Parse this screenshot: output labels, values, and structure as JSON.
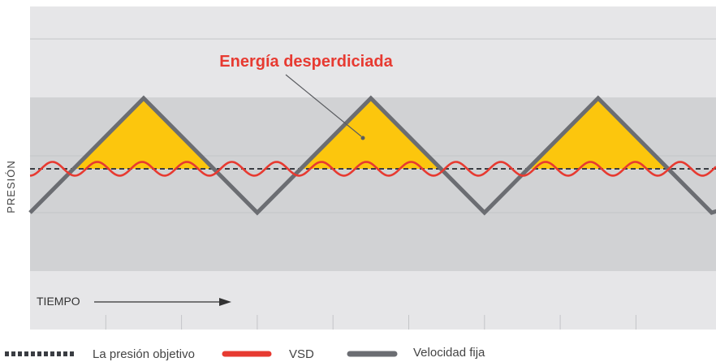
{
  "chart_data": {
    "type": "line",
    "ylabel": "PRESIÓN",
    "xlabel": "TIEMPO",
    "annotation": "Energía desperdiciada",
    "grid": true,
    "legend_position": "bottom",
    "series": [
      {
        "name": "Velocidad fija",
        "x": [
          0,
          1.5,
          3.0,
          4.5,
          6.0,
          7.5,
          9.0,
          9.5
        ],
        "y": [
          -1,
          2,
          -1,
          2,
          -1,
          2,
          -1,
          -0.7
        ]
      },
      {
        "name": "VSD",
        "amplitude": 0.18,
        "cycles": 15.3
      },
      {
        "name": "La presión objetivo",
        "y": 0.15
      }
    ],
    "legend": [
      {
        "name": "La presión objetivo",
        "style": "dashed",
        "color": "#3a3d42"
      },
      {
        "name": "VSD",
        "style": "solid",
        "color": "#e73a31"
      },
      {
        "name": "Velocidad fija",
        "style": "solid",
        "color": "#6b6d72"
      }
    ],
    "colors": {
      "fixed_speed": "#6b6d72",
      "vsd": "#e73a31",
      "target": "#3a3d42",
      "wasted_energy": "#fcc60d",
      "annotation_text": "#e73a31",
      "band_light": "#e6e6e8",
      "band_dark": "#d1d2d4"
    }
  }
}
